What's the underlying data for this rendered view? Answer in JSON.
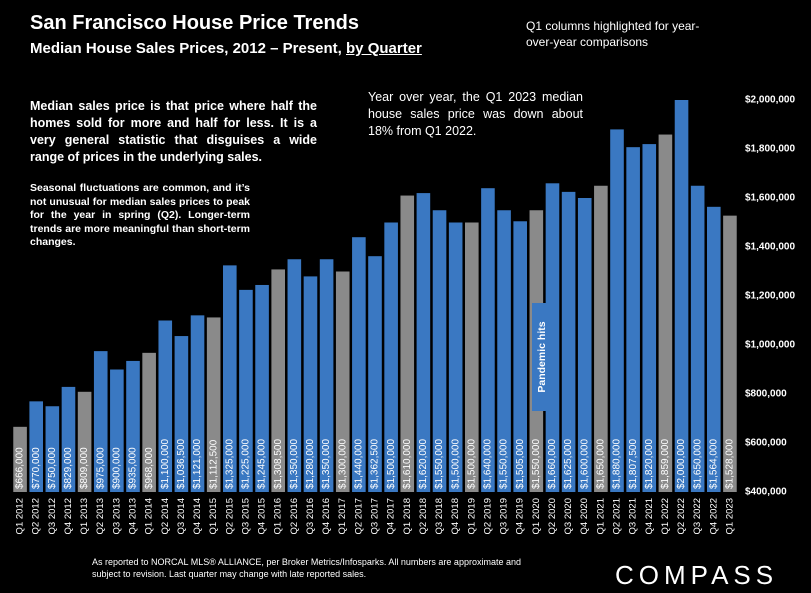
{
  "chart_data": {
    "type": "bar",
    "title": "San Francisco House Price Trends",
    "subtitle": "Median House Sales Prices, 2012 – Present,",
    "subtitle_emphasis": "by Quarter",
    "note_top_right": "Q1 columns highlighted for year-over-year comparisons",
    "note_yoy": "Year over year, the Q1 2023 median house sales price was down about 18% from Q1 2022.",
    "note_median": "Median sales price is that price where half the homes sold for more and half for less. It is a very general statistic that disguises a wide range of prices in the underlying sales.",
    "note_seasonal": "Seasonal fluctuations are common, and it’s not unusual for median sales prices to peak for the year in spring (Q2). Longer-term trends are more meaningful than short-term changes.",
    "annotation_pandemic": "Pandemic hits",
    "footer": "As reported to NORCAL MLS® ALLIANCE, per Broker Metrics/Infosparks. All numbers are approximate and subject to revision. Last quarter may change with late reported sales.",
    "logo": "COMPASS",
    "categories": [
      "Q1 2012",
      "Q2 2012",
      "Q3 2012",
      "Q4 2012",
      "Q1 2013",
      "Q2 2013",
      "Q3 2013",
      "Q4 2013",
      "Q1 2014",
      "Q2 2014",
      "Q3 2014",
      "Q4 2014",
      "Q1 2015",
      "Q2 2015",
      "Q3 2015",
      "Q4 2015",
      "Q1 2016",
      "Q2 2016",
      "Q3 2016",
      "Q4 2016",
      "Q1 2017",
      "Q2 2017",
      "Q3 2017",
      "Q4 2017",
      "Q1 2018",
      "Q2 2018",
      "Q3 2018",
      "Q4 2018",
      "Q1 2019",
      "Q2 2019",
      "Q3 2019",
      "Q4 2019",
      "Q1 2020",
      "Q2 2020",
      "Q3 2020",
      "Q4 2020",
      "Q1 2021",
      "Q2 2021",
      "Q3 2021",
      "Q4 2021",
      "Q1 2022",
      "Q2 2022",
      "Q3 2022",
      "Q4 2022",
      "Q1 2023"
    ],
    "values": [
      666000,
      770000,
      750000,
      829000,
      809000,
      975000,
      900000,
      935000,
      968000,
      1100000,
      1036500,
      1121000,
      1112500,
      1325000,
      1225000,
      1245000,
      1308500,
      1350000,
      1280000,
      1350000,
      1300000,
      1440000,
      1362500,
      1500000,
      1610000,
      1620000,
      1550000,
      1500000,
      1500000,
      1640000,
      1550000,
      1505000,
      1550000,
      1660000,
      1625000,
      1600000,
      1650000,
      1880000,
      1807500,
      1820000,
      1859000,
      2000000,
      1650000,
      1564000,
      1528000
    ],
    "value_labels": [
      "$666,000",
      "$770,000",
      "$750,000",
      "$829,000",
      "$809,000",
      "$975,000",
      "$900,000",
      "$935,000",
      "$968,000",
      "$1,100,000",
      "$1,036,500",
      "$1,121,000",
      "$1,112,500",
      "$1,325,000",
      "$1,225,000",
      "$1,245,000",
      "$1,308,500",
      "$1,350,000",
      "$1,280,000",
      "$1,350,000",
      "$1,300,000",
      "$1,440,000",
      "$1,362,500",
      "$1,500,000",
      "$1,610,000",
      "$1,620,000",
      "$1,550,000",
      "$1,500,000",
      "$1,500,000",
      "$1,640,000",
      "$1,550,000",
      "$1,505,000",
      "$1,550,000",
      "$1,660,000",
      "$1,625,000",
      "$1,600,000",
      "$1,650,000",
      "$1,880,000",
      "$1,807,500",
      "$1,820,000",
      "$1,859,000",
      "$2,000,000",
      "$1,650,000",
      "$1,564,000",
      "$1,528,000"
    ],
    "colors": [
      "#8a8a8a",
      "#3a78c2",
      "#3a78c2",
      "#3a78c2",
      "#8a8a8a",
      "#3a78c2",
      "#3a78c2",
      "#3a78c2",
      "#8a8a8a",
      "#3a78c2",
      "#3a78c2",
      "#3a78c2",
      "#8a8a8a",
      "#3a78c2",
      "#3a78c2",
      "#3a78c2",
      "#8a8a8a",
      "#3a78c2",
      "#3a78c2",
      "#3a78c2",
      "#8a8a8a",
      "#3a78c2",
      "#3a78c2",
      "#3a78c2",
      "#8a8a8a",
      "#3a78c2",
      "#3a78c2",
      "#3a78c2",
      "#8a8a8a",
      "#3a78c2",
      "#3a78c2",
      "#3a78c2",
      "#8a8a8a",
      "#3a78c2",
      "#3a78c2",
      "#3a78c2",
      "#8a8a8a",
      "#3a78c2",
      "#3a78c2",
      "#3a78c2",
      "#8a8a8a",
      "#3a78c2",
      "#3a78c2",
      "#3a78c2",
      "#8a8a8a"
    ],
    "ylim": [
      400000,
      2000000
    ],
    "yticks": [
      {
        "value": 400000,
        "label": "$400,000"
      },
      {
        "value": 600000,
        "label": "$600,000"
      },
      {
        "value": 800000,
        "label": "$800,000"
      },
      {
        "value": 1000000,
        "label": "$1,000,000"
      },
      {
        "value": 1200000,
        "label": "$1,200,000"
      },
      {
        "value": 1400000,
        "label": "$1,400,000"
      },
      {
        "value": 1600000,
        "label": "$1,600,000"
      },
      {
        "value": 1800000,
        "label": "$1,800,000"
      },
      {
        "value": 2000000,
        "label": "$2,000,000"
      }
    ]
  }
}
